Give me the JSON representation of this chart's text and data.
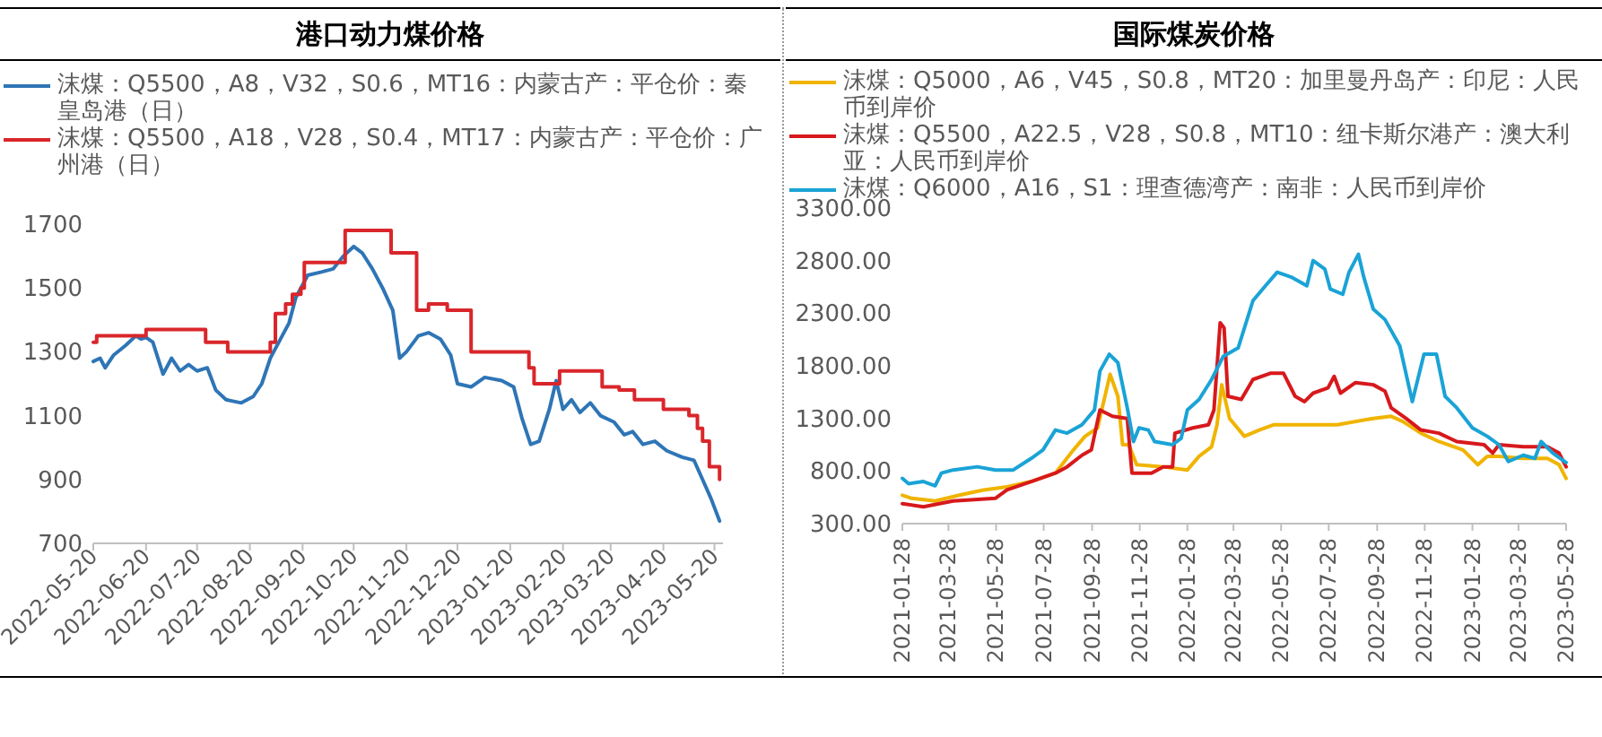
{
  "chart_data": [
    {
      "type": "line",
      "title": "港口动力煤价格",
      "legend": "top",
      "xlim": [
        "2022-05-20",
        "2023-05-25"
      ],
      "ylim": [
        700,
        1700
      ],
      "yticks": [
        700,
        900,
        1100,
        1300,
        1500,
        1700
      ],
      "xticks": [
        "2022-05-20",
        "2022-06-20",
        "2022-07-20",
        "2022-08-20",
        "2022-09-20",
        "2022-10-20",
        "2022-11-20",
        "2022-12-20",
        "2023-01-20",
        "2023-02-20",
        "2023-03-20",
        "2023-04-20",
        "2023-05-20"
      ],
      "series": [
        {
          "name": "沫煤：Q5500，A8，V32，S0.6，MT16：内蒙古产：平仓价：秦皇岛港（日）",
          "color": "#2e75b6",
          "x": [
            "2022-05-20",
            "2022-05-24",
            "2022-05-27",
            "2022-06-01",
            "2022-06-08",
            "2022-06-14",
            "2022-06-17",
            "2022-06-20",
            "2022-06-24",
            "2022-06-30",
            "2022-07-05",
            "2022-07-10",
            "2022-07-15",
            "2022-07-20",
            "2022-07-26",
            "2022-07-31",
            "2022-08-06",
            "2022-08-15",
            "2022-08-22",
            "2022-08-27",
            "2022-09-01",
            "2022-09-07",
            "2022-09-12",
            "2022-09-16",
            "2022-09-23",
            "2022-10-01",
            "2022-10-08",
            "2022-10-14",
            "2022-10-20",
            "2022-10-25",
            "2022-10-31",
            "2022-11-06",
            "2022-11-12",
            "2022-11-16",
            "2022-11-20",
            "2022-11-27",
            "2022-12-03",
            "2022-12-10",
            "2022-12-16",
            "2022-12-20",
            "2022-12-28",
            "2023-01-05",
            "2023-01-15",
            "2023-01-22",
            "2023-01-27",
            "2023-02-01",
            "2023-02-06",
            "2023-02-12",
            "2023-02-16",
            "2023-02-20",
            "2023-02-25",
            "2023-03-02",
            "2023-03-08",
            "2023-03-14",
            "2023-03-22",
            "2023-03-28",
            "2023-04-02",
            "2023-04-08",
            "2023-04-15",
            "2023-04-22",
            "2023-05-01",
            "2023-05-08",
            "2023-05-13",
            "2023-05-18",
            "2023-05-23"
          ],
          "values": [
            1270,
            1280,
            1250,
            1290,
            1320,
            1350,
            1340,
            1345,
            1330,
            1230,
            1280,
            1240,
            1260,
            1240,
            1250,
            1180,
            1150,
            1140,
            1160,
            1200,
            1280,
            1340,
            1390,
            1470,
            1540,
            1550,
            1560,
            1600,
            1630,
            1610,
            1560,
            1500,
            1430,
            1280,
            1300,
            1350,
            1360,
            1340,
            1290,
            1200,
            1190,
            1220,
            1210,
            1190,
            1090,
            1010,
            1020,
            1120,
            1210,
            1120,
            1150,
            1110,
            1140,
            1100,
            1080,
            1040,
            1050,
            1010,
            1020,
            990,
            970,
            960,
            900,
            840,
            770
          ]
        },
        {
          "name": "沫煤：Q5500，A18，V28，S0.4，MT17：内蒙古产：平仓价：广州港（日）",
          "color": "#d9262b",
          "type": "step",
          "x": [
            "2022-05-20",
            "2022-05-22",
            "2022-06-20",
            "2022-07-25",
            "2022-08-07",
            "2022-09-01",
            "2022-09-04",
            "2022-09-10",
            "2022-09-14",
            "2022-09-19",
            "2022-09-21",
            "2022-10-15",
            "2022-11-11",
            "2022-11-26",
            "2022-12-03",
            "2022-12-14",
            "2022-12-28",
            "2023-01-31",
            "2023-02-03",
            "2023-02-18",
            "2023-03-15",
            "2023-03-25",
            "2023-04-03",
            "2023-04-20",
            "2023-05-05",
            "2023-05-10",
            "2023-05-13",
            "2023-05-17",
            "2023-05-23"
          ],
          "values": [
            1330,
            1350,
            1370,
            1330,
            1300,
            1330,
            1420,
            1450,
            1480,
            1500,
            1580,
            1680,
            1610,
            1430,
            1450,
            1430,
            1300,
            1250,
            1200,
            1240,
            1190,
            1180,
            1150,
            1120,
            1100,
            1060,
            1020,
            940,
            900
          ]
        }
      ]
    },
    {
      "type": "line",
      "title": "国际煤炭价格",
      "legend": "top",
      "xlim": [
        "2021-01-28",
        "2023-05-28"
      ],
      "ylim": [
        300,
        3300
      ],
      "yticks": [
        {
          "value": 300,
          "label": "300.00"
        },
        {
          "value": 800,
          "label": "800.00"
        },
        {
          "value": 1300,
          "label": "1300.00"
        },
        {
          "value": 1800,
          "label": "1800.00"
        },
        {
          "value": 2300,
          "label": "2300.00"
        },
        {
          "value": 2800,
          "label": "2800.00"
        },
        {
          "value": 3300,
          "label": "3300.00"
        }
      ],
      "xticks": [
        "2021-01-28",
        "2021-03-28",
        "2021-05-28",
        "2021-07-28",
        "2021-09-28",
        "2021-11-28",
        "2022-01-28",
        "2022-03-28",
        "2022-05-28",
        "2022-07-28",
        "2022-09-28",
        "2022-11-28",
        "2023-01-28",
        "2023-03-28",
        "2023-05-28"
      ],
      "series": [
        {
          "name": "沫煤：Q5000，A6，V45，S0.8，MT20：加里曼丹岛产：印尼：人民币到岸价",
          "color": "#f0b400",
          "x": [
            "2021-01-28",
            "2021-02-09",
            "2021-03-11",
            "2021-04-11",
            "2021-05-12",
            "2021-06-11",
            "2021-07-12",
            "2021-08-12",
            "2021-09-04",
            "2021-09-19",
            "2021-10-05",
            "2021-10-21",
            "2021-10-31",
            "2021-11-06",
            "2021-11-14",
            "2021-11-24",
            "2021-12-28",
            "2022-01-28",
            "2022-02-12",
            "2022-02-28",
            "2022-03-07",
            "2022-03-13",
            "2022-03-23",
            "2022-04-11",
            "2022-04-30",
            "2022-05-19",
            "2022-06-23",
            "2022-08-08",
            "2022-09-23",
            "2022-10-16",
            "2022-10-31",
            "2022-11-23",
            "2022-12-16",
            "2023-01-16",
            "2023-02-04",
            "2023-02-16",
            "2023-03-03",
            "2023-04-03",
            "2023-05-04",
            "2023-05-19",
            "2023-05-28"
          ],
          "values": [
            570,
            540,
            515,
            570,
            620,
            650,
            700,
            780,
            1000,
            1130,
            1210,
            1720,
            1510,
            1050,
            1050,
            860,
            840,
            810,
            940,
            1030,
            1240,
            1620,
            1300,
            1130,
            1190,
            1240,
            1240,
            1240,
            1300,
            1320,
            1270,
            1160,
            1080,
            1000,
            860,
            940,
            940,
            920,
            920,
            860,
            730
          ]
        },
        {
          "name": "沫煤：Q5500，A22.5，V28，S0.8，MT10：纽卡斯尔港产：澳大利亚：人民币到岸价",
          "color": "#d7191c",
          "x": [
            "2021-01-28",
            "2021-02-24",
            "2021-04-03",
            "2021-05-27",
            "2021-06-11",
            "2021-07-12",
            "2021-08-12",
            "2021-08-27",
            "2021-09-15",
            "2021-09-27",
            "2021-10-08",
            "2021-10-24",
            "2021-11-12",
            "2021-11-18",
            "2021-12-13",
            "2021-12-28",
            "2022-01-09",
            "2022-01-12",
            "2022-02-04",
            "2022-02-24",
            "2022-03-03",
            "2022-03-11",
            "2022-03-16",
            "2022-03-21",
            "2022-04-07",
            "2022-04-22",
            "2022-05-15",
            "2022-05-31",
            "2022-06-15",
            "2022-06-27",
            "2022-07-08",
            "2022-07-27",
            "2022-08-04",
            "2022-08-12",
            "2022-08-31",
            "2022-09-23",
            "2022-10-08",
            "2022-10-16",
            "2022-11-04",
            "2022-11-23",
            "2022-12-16",
            "2023-01-08",
            "2023-02-12",
            "2023-02-23",
            "2023-03-03",
            "2023-04-03",
            "2023-05-04",
            "2023-05-19",
            "2023-05-28"
          ],
          "values": [
            490,
            460,
            515,
            540,
            620,
            700,
            780,
            840,
            950,
            1000,
            1380,
            1320,
            1300,
            780,
            780,
            840,
            840,
            1160,
            1210,
            1240,
            1380,
            2210,
            2160,
            1510,
            1480,
            1670,
            1730,
            1730,
            1510,
            1460,
            1540,
            1590,
            1700,
            1540,
            1640,
            1620,
            1560,
            1400,
            1300,
            1190,
            1160,
            1080,
            1050,
            970,
            1050,
            1030,
            1030,
            970,
            840
          ]
        },
        {
          "name": "沫煤：Q6000，A16，S1：理查德湾产：南非：人民币到岸价",
          "color": "#1aa3d6",
          "x": [
            "2021-01-28",
            "2021-02-05",
            "2021-02-24",
            "2021-03-11",
            "2021-03-19",
            "2021-04-03",
            "2021-05-04",
            "2021-05-27",
            "2021-06-19",
            "2021-07-12",
            "2021-07-27",
            "2021-08-12",
            "2021-08-27",
            "2021-09-15",
            "2021-10-01",
            "2021-10-08",
            "2021-10-20",
            "2021-10-31",
            "2021-11-12",
            "2021-11-20",
            "2021-11-27",
            "2021-12-09",
            "2021-12-17",
            "2022-01-09",
            "2022-01-20",
            "2022-01-28",
            "2022-02-12",
            "2022-02-28",
            "2022-03-15",
            "2022-04-03",
            "2022-04-22",
            "2022-05-08",
            "2022-05-23",
            "2022-06-11",
            "2022-06-30",
            "2022-07-08",
            "2022-07-23",
            "2022-07-30",
            "2022-08-15",
            "2022-08-23",
            "2022-09-04",
            "2022-09-11",
            "2022-09-23",
            "2022-10-08",
            "2022-10-27",
            "2022-11-12",
            "2022-11-27",
            "2022-12-13",
            "2022-12-24",
            "2023-01-08",
            "2023-01-28",
            "2023-02-16",
            "2023-03-03",
            "2023-03-15",
            "2023-04-03",
            "2023-04-18",
            "2023-04-26",
            "2023-05-11",
            "2023-05-28"
          ],
          "values": [
            730,
            680,
            700,
            660,
            780,
            810,
            840,
            810,
            810,
            920,
            1000,
            1190,
            1160,
            1240,
            1380,
            1750,
            1910,
            1830,
            1400,
            1080,
            1210,
            1190,
            1080,
            1050,
            1110,
            1380,
            1480,
            1670,
            1890,
            1970,
            2420,
            2560,
            2690,
            2640,
            2560,
            2800,
            2720,
            2530,
            2480,
            2690,
            2860,
            2640,
            2340,
            2240,
            1990,
            1460,
            1910,
            1910,
            1510,
            1400,
            1210,
            1130,
            1050,
            890,
            950,
            920,
            1080,
            970,
            880
          ]
        }
      ]
    }
  ]
}
